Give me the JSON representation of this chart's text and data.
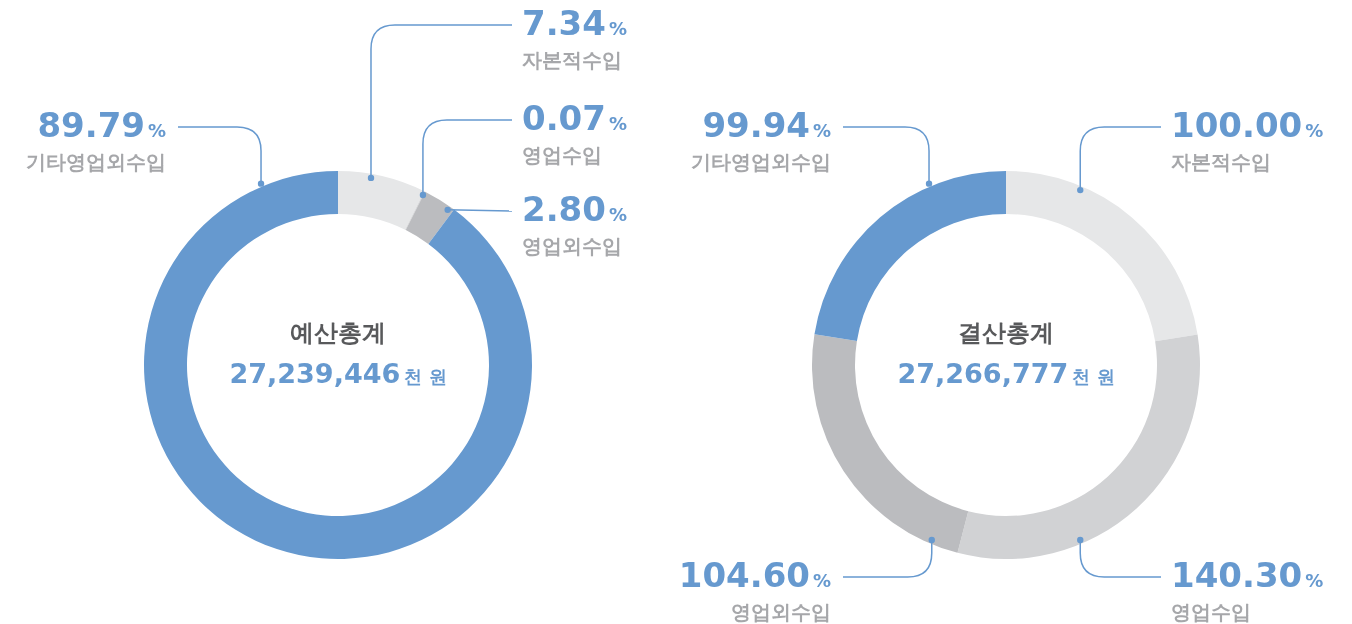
{
  "chart_data": [
    {
      "type": "donut",
      "title": "예산총계",
      "subtitle": "27,239,446천 원",
      "categories": [
        "자본적수입",
        "영업수입",
        "영업외수입",
        "기타영업외수입"
      ],
      "values": [
        7.34,
        0.07,
        2.8,
        89.79
      ],
      "colors": [
        "#e6e7e8",
        "#d2d3d5",
        "#bbbcbf",
        "#6699cf"
      ],
      "value_labels": [
        "7.34%",
        "0.07%",
        "2.80%",
        "89.79%"
      ]
    },
    {
      "type": "donut",
      "title": "결산총계",
      "subtitle": "27,266,777천 원",
      "categories": [
        "자본적수입",
        "영업수입",
        "영업외수입",
        "기타영업외수입"
      ],
      "values": [
        100.0,
        140.3,
        104.6,
        99.94
      ],
      "colors": [
        "#e6e7e8",
        "#d1d2d4",
        "#bbbcbf",
        "#6699cf"
      ],
      "value_labels": [
        "100.00%",
        "140.30%",
        "104.60%",
        "99.94%"
      ]
    }
  ]
}
